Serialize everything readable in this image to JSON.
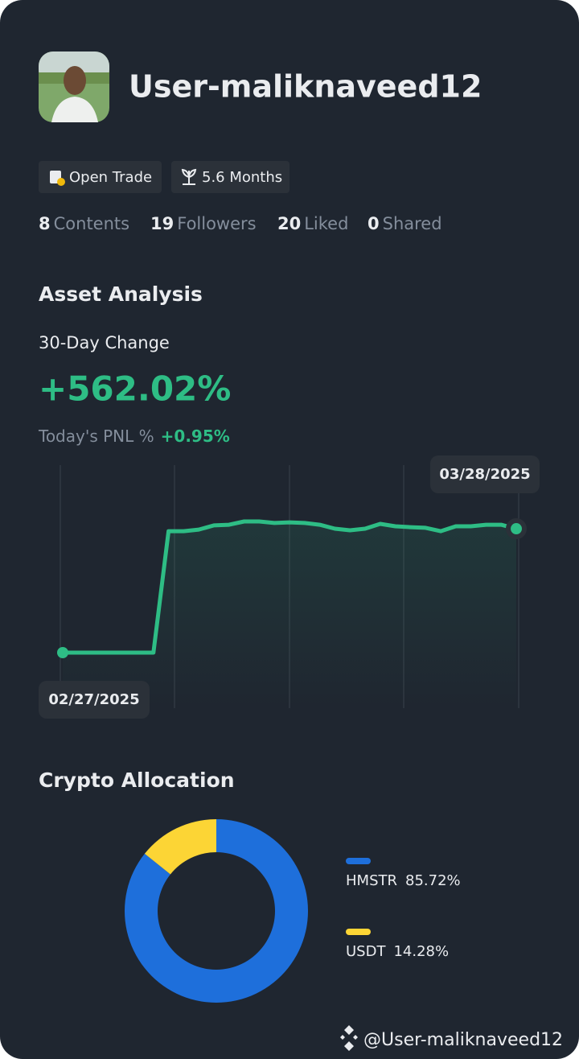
{
  "header": {
    "username": "User-maliknaveed12",
    "badges": [
      "Open Trade",
      "5.6 Months"
    ],
    "stats": [
      {
        "number": 8,
        "label": "Contents"
      },
      {
        "number": 19,
        "label": "Followers"
      },
      {
        "number": 20,
        "label": "Liked"
      },
      {
        "number": 0,
        "label": "Shared"
      }
    ]
  },
  "asset_analysis": {
    "title": "Asset Analysis",
    "change_label": "30-Day Change",
    "change_value": "+562.02%",
    "pnl_label": "Today's PNL %",
    "pnl_value": "+0.95%",
    "chart": {
      "type": "line",
      "color": "#2ebd85",
      "start_label": "02/27/2025",
      "end_label": "03/28/2025",
      "values": [
        0,
        0,
        0,
        0,
        0,
        0,
        0,
        551,
        551,
        558,
        577,
        580,
        595,
        595,
        588,
        591,
        588,
        580,
        562,
        555,
        562,
        584,
        573,
        569,
        566,
        551,
        573,
        573,
        580,
        580,
        562.02
      ]
    }
  },
  "crypto_allocation": {
    "title": "Crypto Allocation",
    "chart": {
      "type": "pie",
      "categories": [
        "HMSTR",
        "USDT"
      ],
      "values": [
        85.72,
        14.28
      ],
      "value_labels": [
        "85.72%",
        "14.28%"
      ],
      "colors": [
        "#1e6fdb",
        "#fcd535"
      ]
    }
  },
  "footer": {
    "handle": "@User-maliknaveed12"
  }
}
